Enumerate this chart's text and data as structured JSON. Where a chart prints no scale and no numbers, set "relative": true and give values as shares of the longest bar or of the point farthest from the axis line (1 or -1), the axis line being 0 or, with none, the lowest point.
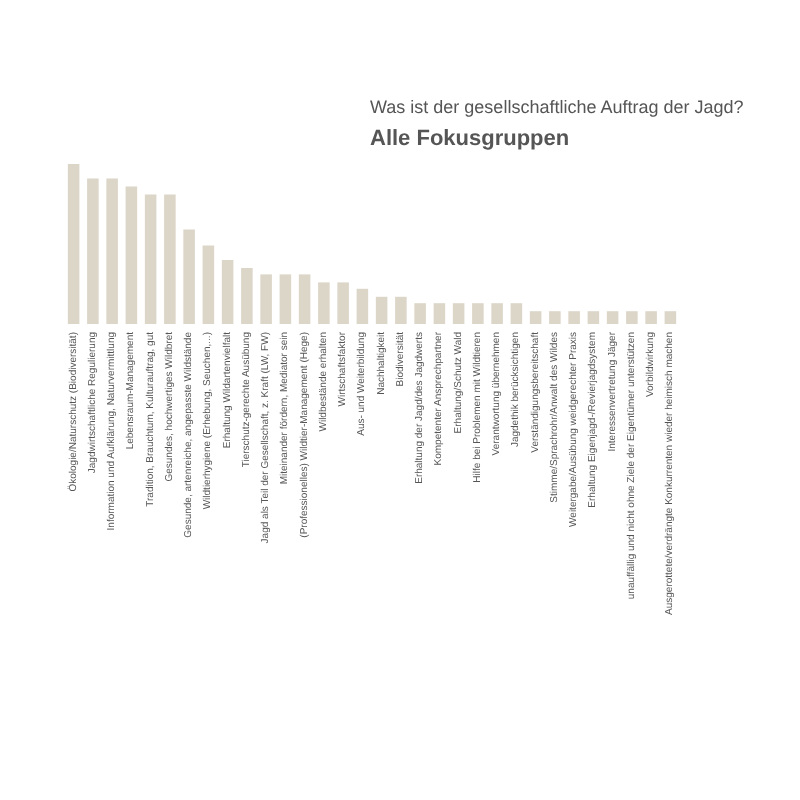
{
  "chart_data": {
    "type": "bar",
    "title": "Was ist der gesellschaftliche Auftrag der Jagd?",
    "subtitle": "Alle Fokusgruppen",
    "relative": true,
    "color": "#dcd6c8",
    "categories": [
      "Ökologie/Naturschutz (Biodiversität)",
      "Jagdwirtschaftliche Regulierung",
      "Information und Aufklärung, Naturvermittlung",
      "Lebensraum-Management",
      "Tradition, Brauchtum, Kulturauftrag, gut",
      "Gesundes, hochwertiges Wildbret",
      "Gesunde, artenreiche, angepasste Wildstände",
      "Wildtierhygiene (Erhebung, Seuchen,...)",
      "Erhaltung Wildartenvielfalt",
      "Tierschutz-gerechte Ausübung",
      "Jagd als Teil der Gesellschaft, z. Kraft (LW, FW)",
      "Miteinander fördern, Mediator sein",
      "(Professionelles) Wildtier-Management (Hege)",
      "Wildbestände erhalten",
      "Wirtschaftsfaktor",
      "Aus- und Weiterbildung",
      "Nachhaltigkeit",
      "Biodiversität",
      "Erhaltung der Jagd/des Jagdwerts",
      "Kompetenter Ansprechpartner",
      "Erhaltung/Schutz Wald",
      "Hilfe bei Problemen mit Wildtieren",
      "Verantwortung übernehmen",
      "Jagdethik berücksichtigen",
      "Verständigungsbereitschaft",
      "Stimme/Sprachrohr/Anwalt des Wildes",
      "Weitergabe/Ausübung weidgerechter Praxis",
      "Erhaltung Eigenjagd-/Revierjagdsystem",
      "Interessenvertretung Jäger",
      "unauffällig und nicht ohne Ziele der Eigentümer unterstützen",
      "Vorbildwirkung",
      "Ausgerottete/verdrängte Konkurrenten wieder heimisch machen"
    ],
    "values": [
      1,
      0.91,
      0.91,
      0.86,
      0.81,
      0.81,
      0.59,
      0.49,
      0.4,
      0.35,
      0.31,
      0.31,
      0.31,
      0.26,
      0.26,
      0.22,
      0.17,
      0.17,
      0.13,
      0.13,
      0.13,
      0.13,
      0.13,
      0.13,
      0.08,
      0.08,
      0.08,
      0.08,
      0.08,
      0.08,
      0.08,
      0.08
    ]
  }
}
